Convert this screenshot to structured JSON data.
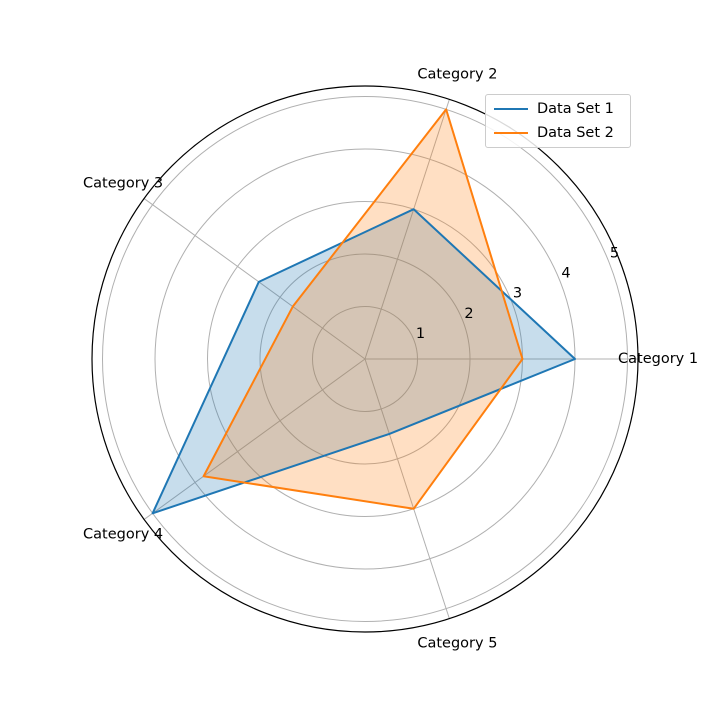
{
  "chart_data": {
    "type": "radar",
    "categories": [
      "Category 1",
      "Category 2",
      "Category 3",
      "Category 4",
      "Category 5"
    ],
    "series": [
      {
        "name": "Data Set 1",
        "values": [
          4,
          3,
          2.5,
          5,
          1.5
        ],
        "color": "#1f77b4"
      },
      {
        "name": "Data Set 2",
        "values": [
          3,
          5,
          1.7,
          3.8,
          3
        ],
        "color": "#ff7f0e"
      }
    ],
    "radial_ticks": [
      "1",
      "2",
      "3",
      "4",
      "5"
    ],
    "radial_max": 5.2,
    "grid": true,
    "legend_position": "top-right"
  }
}
